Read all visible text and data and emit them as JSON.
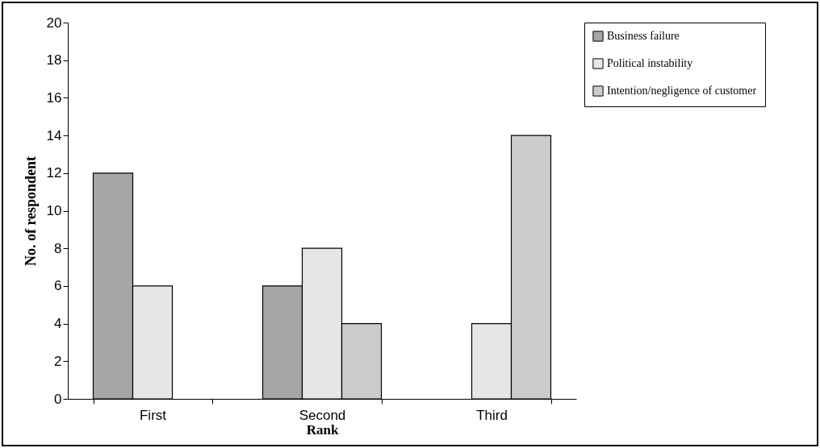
{
  "chart_data": {
    "type": "bar",
    "xlabel": "Rank",
    "ylabel": "No. of respondent",
    "categories": [
      "First",
      "Second",
      "Third"
    ],
    "series": [
      {
        "name": "Business failure",
        "color": "#a6a6a6",
        "values": [
          12,
          6,
          null
        ]
      },
      {
        "name": "Political instability",
        "color": "#e6e6e6",
        "values": [
          6,
          8,
          4
        ]
      },
      {
        "name": "Intention/negligence of customer",
        "color": "#cccccc",
        "values": [
          null,
          4,
          14
        ]
      }
    ],
    "ylim": [
      0,
      20
    ],
    "yticks": [
      0,
      2,
      4,
      6,
      8,
      10,
      12,
      14,
      16,
      18,
      20
    ],
    "grid": false,
    "legend": "right"
  }
}
